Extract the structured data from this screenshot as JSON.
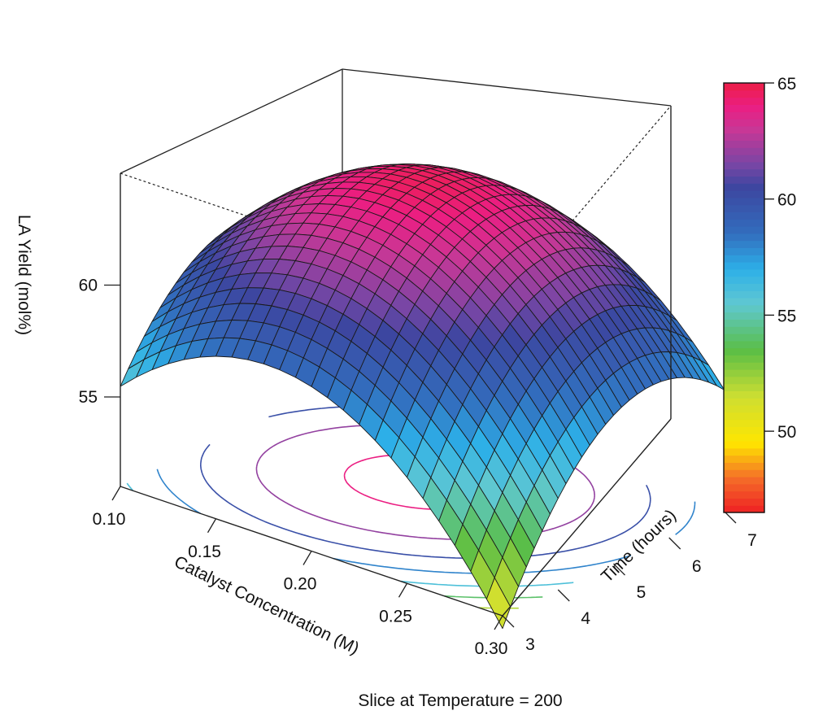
{
  "chart_data": {
    "type": "surface3d",
    "title": "",
    "caption": "Slice at Temperature = 200",
    "x_axis": {
      "label": "Catalyst Concentration (M)",
      "ticks": [
        0.1,
        0.15,
        0.2,
        0.25,
        0.3
      ],
      "tick_labels": [
        "0.10",
        "0.15",
        "0.20",
        "0.25",
        "0.30"
      ],
      "range": [
        0.1,
        0.3
      ]
    },
    "y_axis": {
      "label": "Time (hours)",
      "ticks": [
        3,
        4,
        5,
        6,
        7
      ],
      "tick_labels": [
        "3",
        "4",
        "5",
        "6",
        "7"
      ],
      "range": [
        3,
        7
      ]
    },
    "z_axis": {
      "label": "LA Yield (mol%)",
      "ticks": [
        55,
        60
      ],
      "tick_labels": [
        "55",
        "60"
      ],
      "range": [
        51,
        65
      ]
    },
    "colorbar": {
      "ticks": [
        50,
        55,
        60,
        65
      ],
      "tick_labels": [
        "50",
        "55",
        "60",
        "65"
      ],
      "range": [
        46.5,
        65
      ]
    },
    "surface_fit": {
      "description": "quadratic response surface",
      "optimum": {
        "catalyst_M": 0.19,
        "time_h": 5.4,
        "yield": 64.6
      },
      "corner_values": [
        {
          "catalyst_M": 0.1,
          "time_h": 3,
          "yield": 53.9
        },
        {
          "catalyst_M": 0.1,
          "time_h": 7,
          "yield": 55.0
        },
        {
          "catalyst_M": 0.3,
          "time_h": 7,
          "yield": 58.9
        },
        {
          "catalyst_M": 0.3,
          "time_h": 3,
          "yield": 46.8
        }
      ]
    },
    "contour_levels": [
      48,
      50,
      52,
      54,
      56,
      58,
      60,
      62,
      64
    ]
  }
}
